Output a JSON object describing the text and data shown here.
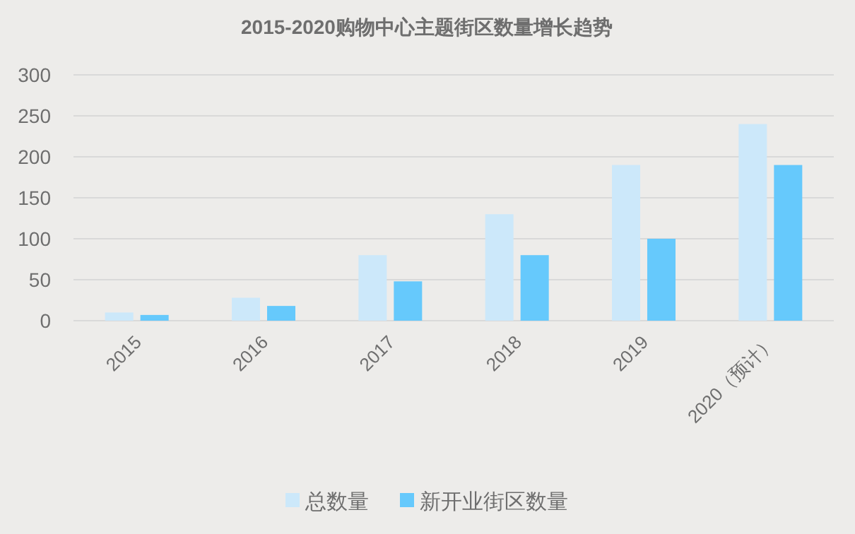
{
  "chart_data": {
    "type": "bar",
    "title": "2015-2020购物中心主题街区数量增长趋势",
    "categories": [
      "2015",
      "2016",
      "2017",
      "2018",
      "2019",
      "2020（预计）"
    ],
    "series": [
      {
        "name": "总数量",
        "color": "#cce8fa",
        "values": [
          10,
          28,
          80,
          130,
          190,
          240
        ]
      },
      {
        "name": "新开业街区数量",
        "color": "#66c9fc",
        "values": [
          7,
          18,
          48,
          80,
          100,
          190
        ]
      }
    ],
    "ylim": [
      0,
      300
    ],
    "yticks": [
      0,
      50,
      100,
      150,
      200,
      250,
      300
    ],
    "grid": "y",
    "legend": "bottom"
  }
}
